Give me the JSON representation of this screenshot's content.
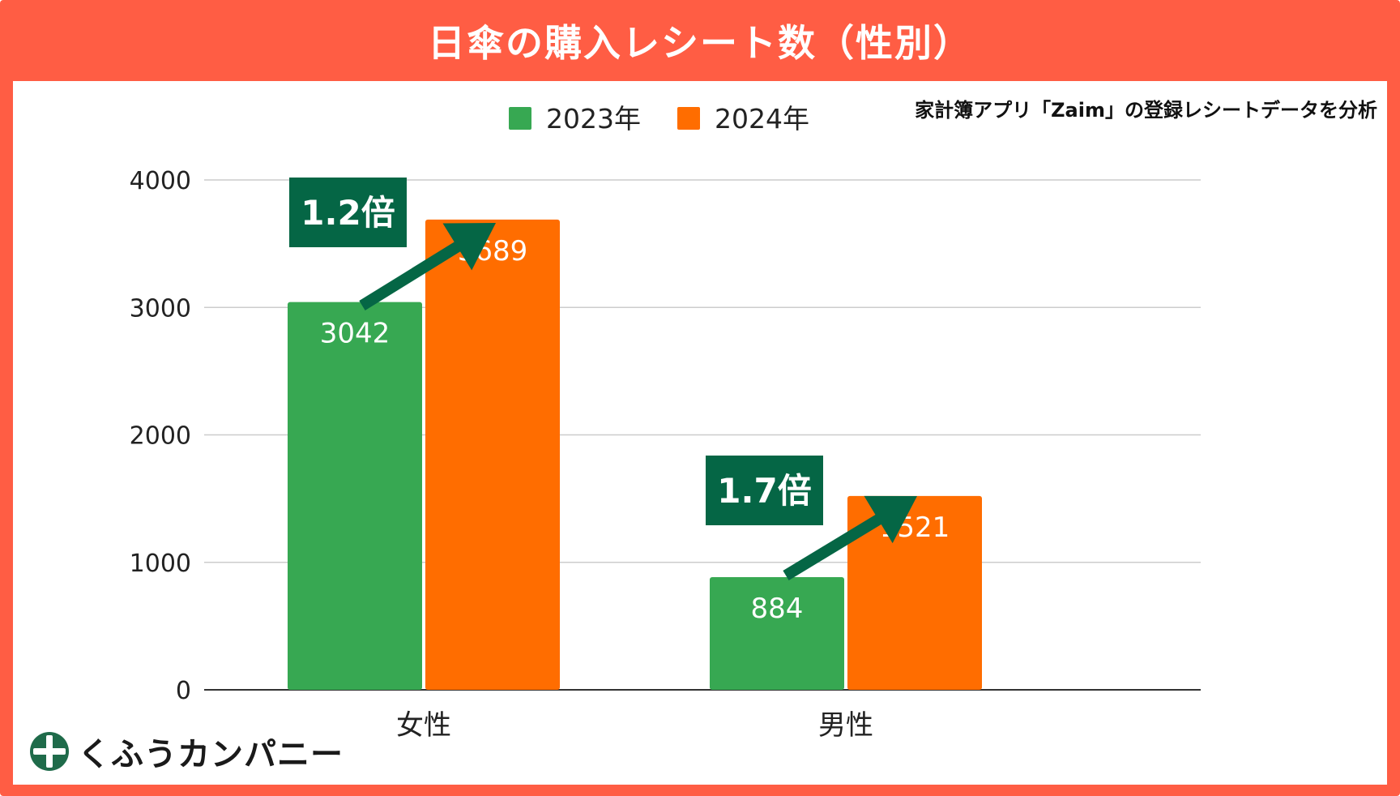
{
  "header": {
    "title": "日傘の購入レシート数（性別）"
  },
  "source_note": "家計簿アプリ「Zaim」の登録レシートデータを分析",
  "brand": {
    "name": "くふうカンパニー",
    "icon": "plus-cross-logo-icon"
  },
  "colors": {
    "frame": "#ff5d44",
    "series_2023": "#37a852",
    "series_2024": "#ff6d00",
    "annotation": "#056645"
  },
  "chart_data": {
    "type": "bar",
    "title": "日傘の購入レシート数（性別）",
    "categories": [
      "女性",
      "男性"
    ],
    "series": [
      {
        "name": "2023年",
        "values": [
          3042,
          884
        ]
      },
      {
        "name": "2024年",
        "values": [
          3689,
          1521
        ]
      }
    ],
    "ylim": [
      0,
      4000
    ],
    "yticks": [
      "0",
      "1000",
      "2000",
      "3000",
      "4000"
    ],
    "grid": true,
    "legend": "top",
    "xlabel": "",
    "ylabel": "",
    "annotations": [
      {
        "category": "女性",
        "text": "1.2倍"
      },
      {
        "category": "男性",
        "text": "1.7倍"
      }
    ]
  }
}
